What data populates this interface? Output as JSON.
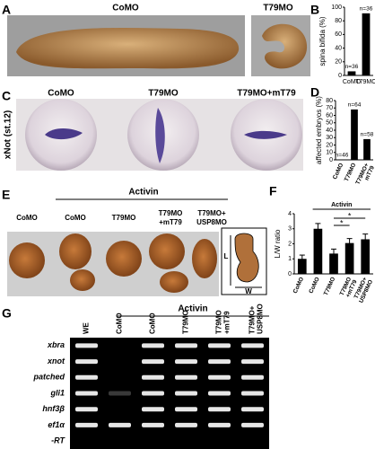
{
  "panel_labels": [
    "A",
    "B",
    "C",
    "D",
    "E",
    "F",
    "G"
  ],
  "panel_a": {
    "labels": [
      "CoMO",
      "T79MO"
    ]
  },
  "panel_c": {
    "side_label": "xNot (st.12)",
    "labels": [
      "CoMO",
      "T79MO",
      "T79MO+mT79"
    ]
  },
  "panel_e": {
    "group_label": "Activin",
    "labels": [
      "CoMO",
      "CoMO",
      "T79MO",
      "T79MO +mT79",
      "T79MO+ USP8MO"
    ],
    "inset_labels": [
      "L",
      "W"
    ]
  },
  "panel_g": {
    "group_label": "Activin",
    "lanes": [
      "WE",
      "CoMO",
      "CoMO",
      "T79MO",
      "T79MO +mT79",
      "T79MO+ USP8MO"
    ],
    "genes": [
      "xbra",
      "xnot",
      "patched",
      "gli1",
      "hnf3β",
      "ef1α",
      "-RT"
    ]
  },
  "chart_data": [
    {
      "type": "bar",
      "ylabel": "spina bifida (%)",
      "categories": [
        "CoMO",
        "T79MO"
      ],
      "values": [
        6,
        91
      ],
      "annotations": [
        "n=36",
        "n=36"
      ],
      "color": "#000000",
      "ylim": [
        0,
        100
      ],
      "yticks": [
        0,
        20,
        40,
        60,
        80,
        100
      ]
    },
    {
      "type": "bar",
      "ylabel": "affected embryos (%)",
      "categories": [
        "CoMO",
        "T79MO",
        "T79MO+ mT79"
      ],
      "values": [
        0,
        68,
        28
      ],
      "annotations": [
        "n=46",
        "n=64",
        "n=58"
      ],
      "color": "#000000",
      "ylim": [
        0,
        80
      ],
      "yticks": [
        0,
        10,
        20,
        30,
        40,
        50,
        60,
        70,
        80
      ]
    },
    {
      "type": "bar",
      "ylabel": "L/W ratio",
      "categories": [
        "CoMO",
        "CoMO",
        "T79MO",
        "T79MO +mT79",
        "T79MO+ USP8MO"
      ],
      "values": [
        1.0,
        3.0,
        1.35,
        2.05,
        2.3
      ],
      "errors": [
        0.25,
        0.35,
        0.3,
        0.3,
        0.35
      ],
      "group_label": "Activin",
      "significance": [
        "*",
        "*"
      ],
      "color": "#000000",
      "ylim": [
        0,
        4
      ],
      "yticks": [
        0,
        1,
        2,
        3,
        4
      ]
    }
  ]
}
